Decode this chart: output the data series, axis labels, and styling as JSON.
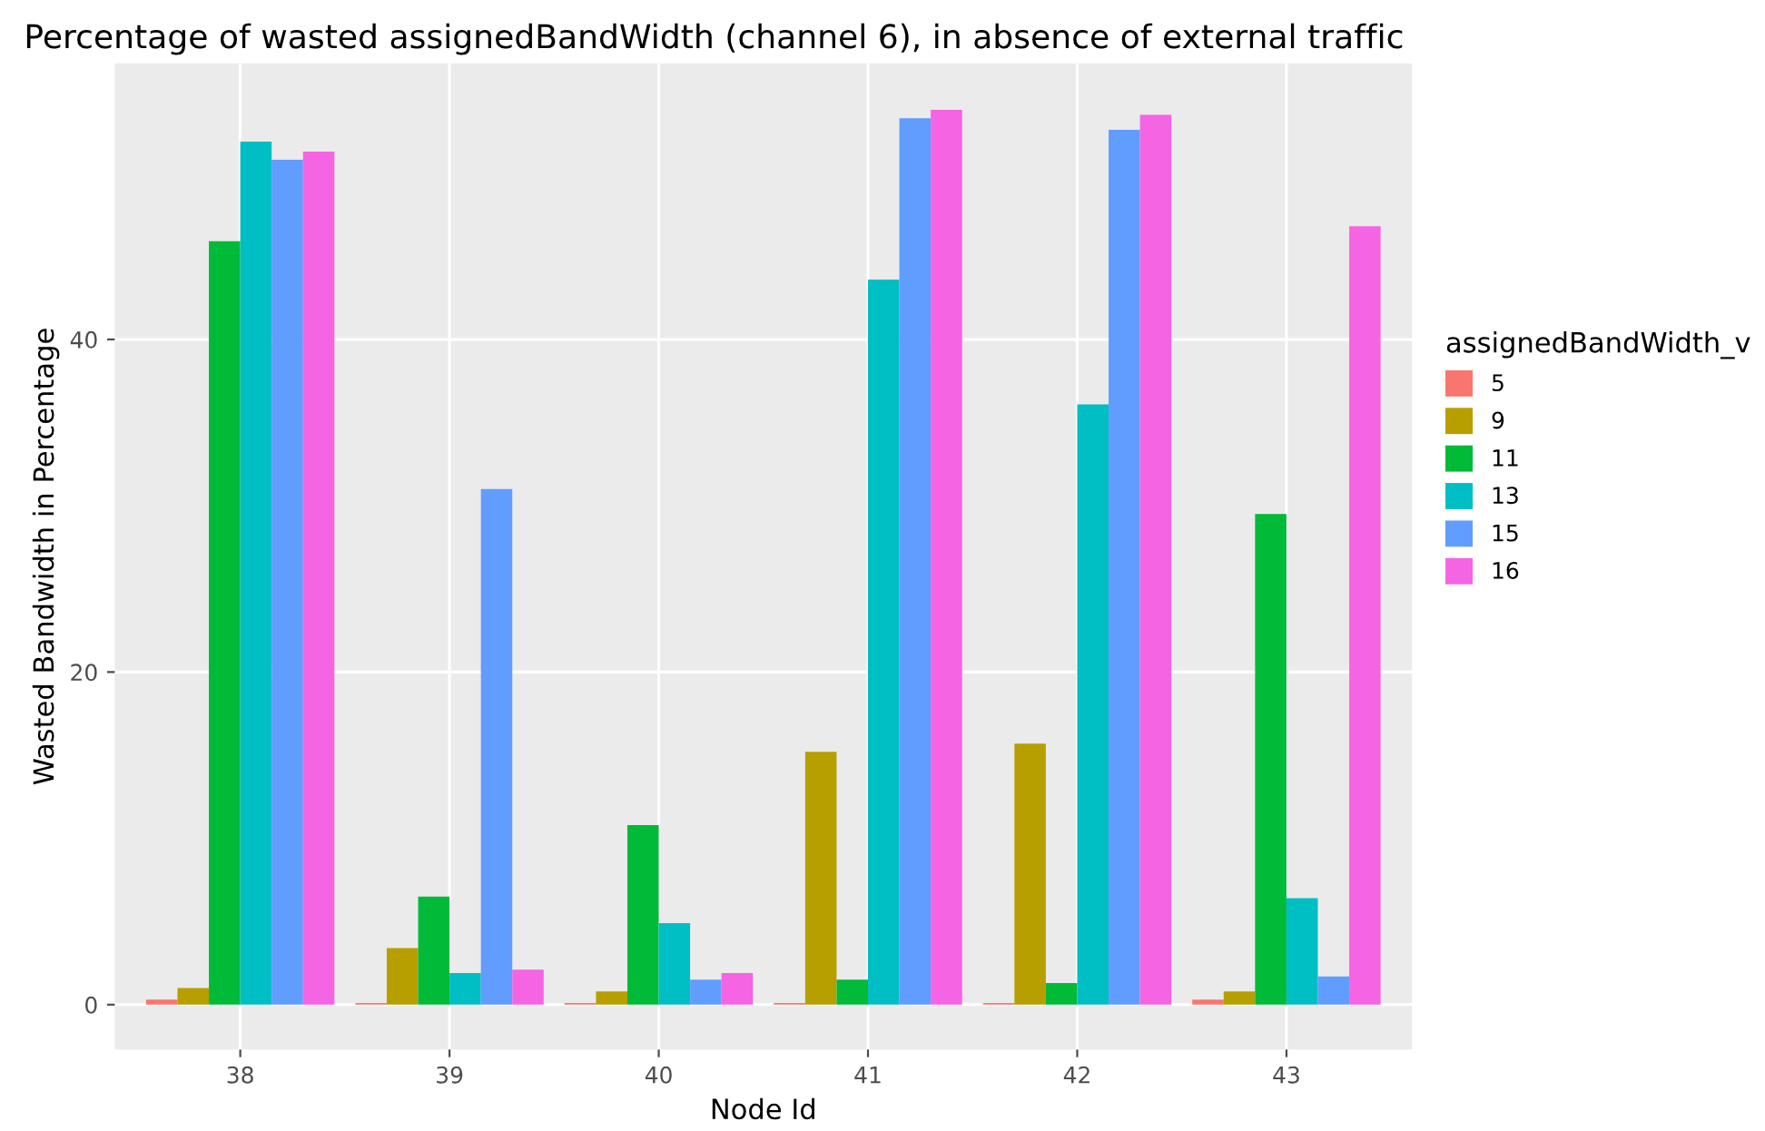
{
  "chart_data": {
    "type": "bar",
    "title": "Percentage of wasted assignedBandWidth (channel 6), in absence of external traffic",
    "xlabel": "Node Id",
    "ylabel": "Wasted Bandwidth in Percentage",
    "legend_title": "assignedBandWidth_v",
    "categories": [
      "38",
      "39",
      "40",
      "41",
      "42",
      "43"
    ],
    "series": [
      {
        "name": "5",
        "color": "#f8766d",
        "values": [
          0.3,
          0.1,
          0.1,
          0.1,
          0.1,
          0.3
        ]
      },
      {
        "name": "9",
        "color": "#b79f00",
        "values": [
          1.0,
          3.4,
          0.8,
          15.2,
          15.7,
          0.8
        ]
      },
      {
        "name": "11",
        "color": "#00ba38",
        "values": [
          45.9,
          6.5,
          10.8,
          1.5,
          1.3,
          29.5
        ]
      },
      {
        "name": "13",
        "color": "#00bfc4",
        "values": [
          51.9,
          1.9,
          4.9,
          43.6,
          36.1,
          6.4
        ]
      },
      {
        "name": "15",
        "color": "#619cff",
        "values": [
          50.8,
          31.0,
          1.5,
          53.3,
          52.6,
          1.7
        ]
      },
      {
        "name": "16",
        "color": "#f564e3",
        "values": [
          51.3,
          2.1,
          1.9,
          53.8,
          53.5,
          46.8
        ]
      }
    ],
    "ylim": [
      -2.7,
      56.6
    ],
    "yticks": [
      0,
      20,
      40
    ],
    "grid": true,
    "legend": "right"
  }
}
